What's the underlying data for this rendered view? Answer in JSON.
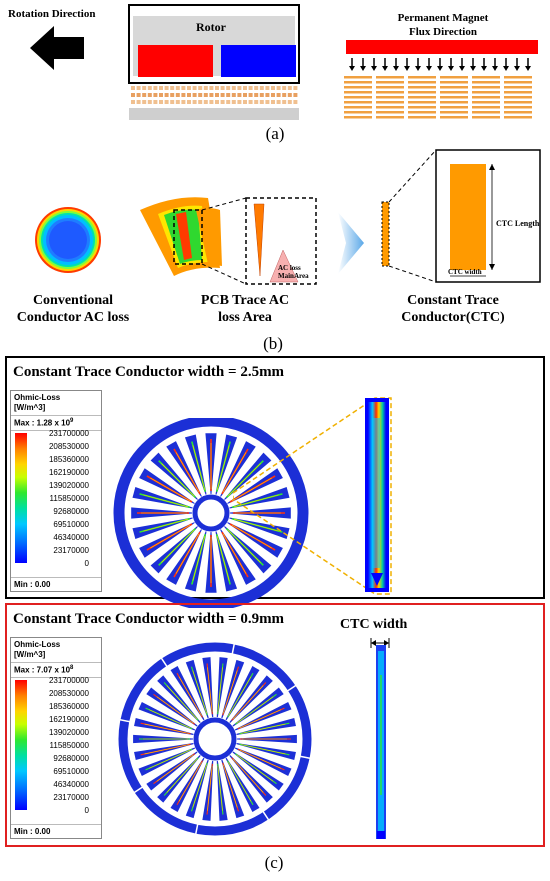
{
  "panel_a": {
    "rotation_label": "Rotation Direction",
    "rotor_label": "Rotor",
    "magnet_label_line1": "Permanent Magnet",
    "magnet_label_line2": "Flux Direction",
    "caption": "(a)"
  },
  "panel_b": {
    "conventional_line1": "Conventional",
    "conventional_line2": "Conductor AC loss",
    "pcb_line1": "PCB Trace AC",
    "pcb_line2": "loss  Area",
    "ac_loss_line1": "AC loss",
    "ac_loss_line2": "MainArea",
    "ctc_line1": "Constant Trace",
    "ctc_line2": "Conductor(CTC)",
    "ctc_length": "CTC Length",
    "ctc_width": "CTC width",
    "caption": "(b)"
  },
  "panel_c": {
    "caption": "(c)",
    "sim1": {
      "title": "Constant Trace Conductor width =  2.5mm",
      "legend_title_line1": "Ohmic-Loss",
      "legend_title_line2": "[W/m^3]",
      "max_label": "Max : 1.28 x 10",
      "max_exp": "9",
      "min_label": "Min : 0.00"
    },
    "sim2": {
      "title": "Constant Trace Conductor width =  0.9mm",
      "legend_title_line1": "Ohmic-Loss",
      "legend_title_line2": "[W/m^3]",
      "max_label": "Max : 7.07 x 10",
      "max_exp": "8",
      "min_label": "Min : 0.00",
      "ctc_width_label": "CTC width"
    },
    "scale_ticks": [
      "231700000",
      "208530000",
      "185360000",
      "162190000",
      "139020000",
      "115850000",
      "92680000",
      "69510000",
      "46340000",
      "23170000",
      "0"
    ]
  },
  "colors": {
    "panel1_border": "#000000",
    "panel2_border": "#e02020",
    "wheel_blue": "#1c2fd6",
    "magnet_red": "#ff0000",
    "magnet_blue": "#0000ff",
    "trace_orange": "#ff9a00"
  }
}
